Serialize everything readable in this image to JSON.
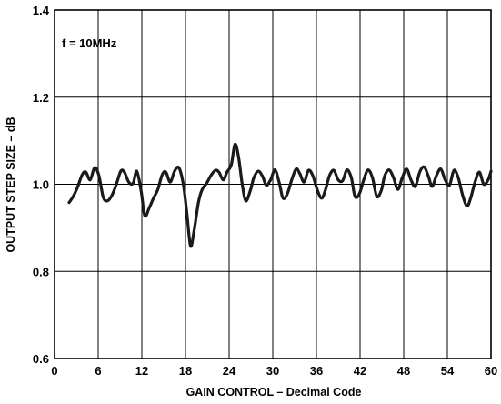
{
  "chart_data": {
    "type": "line",
    "title": "",
    "xlabel": "GAIN CONTROL – Decimal Code",
    "ylabel": "OUTPUT STEP SIZE – dB",
    "annotation": "f = 10MHz",
    "xlim": [
      0,
      60
    ],
    "ylim": [
      0.6,
      1.4
    ],
    "xticks": [
      0,
      6,
      12,
      18,
      24,
      30,
      36,
      42,
      48,
      54,
      60
    ],
    "yticks": [
      0.6,
      0.8,
      1.0,
      1.2,
      1.4
    ],
    "xtick_labels": [
      "0",
      "6",
      "12",
      "18",
      "24",
      "30",
      "36",
      "42",
      "48",
      "54",
      "60"
    ],
    "ytick_labels": [
      "0.6",
      "0.8",
      "1.0",
      "1.2",
      "1.4"
    ],
    "grid": true,
    "line_color": "#1a1a1a",
    "series": [
      {
        "x": [
          2.0,
          2.6,
          3.2,
          3.8,
          4.3,
          4.9,
          5.5,
          6.1,
          6.7,
          7.3,
          7.9,
          8.5,
          9.1,
          9.6,
          10.2,
          10.8,
          11.3,
          11.9,
          12.4,
          13.0,
          13.6,
          14.2,
          14.8,
          15.3,
          15.9,
          16.5,
          17.1,
          17.7,
          18.2,
          18.7,
          19.2,
          19.8,
          20.3,
          20.9,
          21.5,
          22.1,
          22.6,
          23.2,
          23.7,
          24.3,
          24.8,
          25.3,
          25.8,
          26.3,
          26.9,
          27.4,
          28.0,
          28.6,
          29.1,
          29.7,
          30.3,
          30.9,
          31.4,
          32.0,
          32.6,
          33.2,
          33.7,
          34.3,
          34.9,
          35.5,
          36.1,
          36.7,
          37.2,
          37.8,
          38.4,
          39.0,
          39.6,
          40.2,
          40.8,
          41.3,
          41.9,
          42.5,
          43.1,
          43.7,
          44.3,
          44.9,
          45.4,
          46.0,
          46.6,
          47.2,
          47.8,
          48.4,
          49.0,
          49.6,
          50.2,
          50.8,
          51.4,
          51.9,
          52.5,
          53.1,
          53.7,
          54.3,
          54.9,
          55.5,
          56.1,
          56.7,
          57.2,
          57.8,
          58.4,
          59.0,
          59.6,
          60.0
        ],
        "y": [
          0.958,
          0.973,
          0.995,
          1.022,
          1.028,
          1.01,
          1.038,
          1.02,
          0.97,
          0.962,
          0.975,
          1.0,
          1.03,
          1.028,
          1.005,
          1.002,
          1.03,
          0.985,
          0.928,
          0.945,
          0.968,
          0.988,
          1.022,
          1.028,
          1.005,
          1.03,
          1.038,
          1.0,
          0.932,
          0.858,
          0.895,
          0.96,
          0.988,
          1.002,
          1.02,
          1.032,
          1.028,
          1.01,
          1.028,
          1.045,
          1.092,
          1.062,
          1.0,
          0.962,
          0.985,
          1.015,
          1.03,
          1.018,
          0.998,
          1.01,
          1.033,
          1.003,
          0.968,
          0.978,
          1.01,
          1.035,
          1.025,
          1.005,
          1.032,
          1.02,
          0.988,
          0.968,
          0.985,
          1.02,
          1.032,
          1.01,
          1.008,
          1.033,
          1.015,
          0.972,
          0.978,
          1.01,
          1.033,
          1.015,
          0.972,
          0.985,
          1.02,
          1.033,
          1.015,
          0.988,
          1.015,
          1.035,
          1.01,
          0.995,
          1.028,
          1.04,
          1.018,
          0.995,
          1.02,
          1.035,
          1.01,
          0.998,
          1.032,
          1.015,
          0.975,
          0.95,
          0.968,
          1.005,
          1.028,
          1.0,
          1.01,
          1.03
        ]
      }
    ]
  }
}
